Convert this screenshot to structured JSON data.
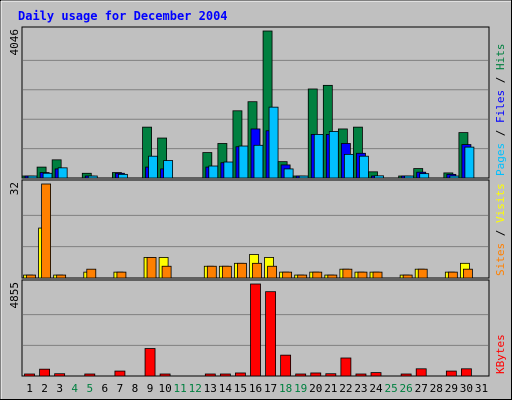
{
  "chart_data": [
    {
      "type": "bar",
      "title": "Daily usage for December 2004",
      "panel": "top",
      "ymax_label": "4046",
      "ylim": [
        0,
        4046
      ],
      "legend": [
        {
          "label": "Pages",
          "color": "#00c0ff"
        },
        {
          "label": "Files",
          "color": "#0000ff"
        },
        {
          "label": "Hits",
          "color": "#008040"
        }
      ],
      "legend_separator": " / ",
      "categories": [
        "1",
        "2",
        "3",
        "4",
        "5",
        "6",
        "7",
        "8",
        "9",
        "10",
        "11",
        "12",
        "13",
        "14",
        "15",
        "16",
        "17",
        "18",
        "19",
        "20",
        "21",
        "22",
        "23",
        "24",
        "25",
        "26",
        "27",
        "28",
        "29",
        "30",
        "31"
      ],
      "series": [
        {
          "name": "Hits",
          "color": "#008040",
          "values": [
            50,
            300,
            500,
            0,
            130,
            0,
            150,
            0,
            1400,
            1100,
            0,
            0,
            700,
            950,
            1850,
            2100,
            4046,
            450,
            50,
            2450,
            2550,
            1350,
            1400,
            170,
            0,
            40,
            260,
            0,
            140,
            1250,
            0
          ]
        },
        {
          "name": "Files",
          "color": "#0000ff",
          "values": [
            30,
            150,
            250,
            0,
            30,
            0,
            130,
            0,
            300,
            250,
            0,
            0,
            300,
            420,
            860,
            1350,
            1300,
            360,
            30,
            1200,
            1200,
            950,
            680,
            30,
            0,
            20,
            160,
            0,
            100,
            920,
            0
          ]
        },
        {
          "name": "Pages",
          "color": "#00c0ff",
          "values": [
            25,
            130,
            280,
            0,
            25,
            0,
            100,
            0,
            600,
            480,
            0,
            0,
            330,
            440,
            880,
            900,
            1950,
            250,
            25,
            1200,
            1280,
            650,
            600,
            60,
            0,
            20,
            120,
            0,
            50,
            850,
            0
          ]
        }
      ]
    },
    {
      "type": "bar",
      "panel": "middle",
      "ymax_label": "32",
      "ylim": [
        0,
        32
      ],
      "legend": [
        {
          "label": "Sites",
          "color": "#ff8000"
        },
        {
          "label": "Visits",
          "color": "#ffff00"
        }
      ],
      "legend_separator": " / ",
      "categories": [
        "1",
        "2",
        "3",
        "4",
        "5",
        "6",
        "7",
        "8",
        "9",
        "10",
        "11",
        "12",
        "13",
        "14",
        "15",
        "16",
        "17",
        "18",
        "19",
        "20",
        "21",
        "22",
        "23",
        "24",
        "25",
        "26",
        "27",
        "28",
        "29",
        "30",
        "31"
      ],
      "series": [
        {
          "name": "Visits",
          "color": "#ffff00",
          "values": [
            1,
            17,
            1,
            0,
            2,
            0,
            2,
            0,
            7,
            7,
            0,
            0,
            4,
            4,
            5,
            8,
            7,
            2,
            1,
            2,
            1,
            3,
            2,
            2,
            0,
            1,
            3,
            0,
            2,
            5,
            0
          ]
        },
        {
          "name": "Sites",
          "color": "#ff8000",
          "values": [
            1,
            32,
            1,
            0,
            3,
            0,
            2,
            0,
            7,
            4,
            0,
            0,
            4,
            4,
            5,
            5,
            4,
            2,
            1,
            2,
            1,
            3,
            2,
            2,
            0,
            1,
            3,
            0,
            2,
            3,
            0
          ]
        }
      ]
    },
    {
      "type": "bar",
      "panel": "bottom",
      "ymax_label": "4855",
      "ylim": [
        0,
        4855
      ],
      "legend": [
        {
          "label": "KBytes",
          "color": "#ff0000"
        }
      ],
      "legend_separator": "",
      "categories": [
        "1",
        "2",
        "3",
        "4",
        "5",
        "6",
        "7",
        "8",
        "9",
        "10",
        "11",
        "12",
        "13",
        "14",
        "15",
        "16",
        "17",
        "18",
        "19",
        "20",
        "21",
        "22",
        "23",
        "24",
        "25",
        "26",
        "27",
        "28",
        "29",
        "30",
        "31"
      ],
      "series": [
        {
          "name": "KBytes",
          "color": "#ff0000",
          "values": [
            40,
            360,
            120,
            0,
            40,
            0,
            260,
            0,
            1450,
            80,
            0,
            0,
            80,
            90,
            160,
            4855,
            4450,
            1100,
            60,
            160,
            120,
            950,
            70,
            180,
            0,
            40,
            380,
            0,
            260,
            380,
            0
          ]
        }
      ]
    }
  ],
  "x_axis": {
    "labels": [
      "1",
      "2",
      "3",
      "4",
      "5",
      "6",
      "7",
      "8",
      "9",
      "10",
      "11",
      "12",
      "13",
      "14",
      "15",
      "16",
      "17",
      "18",
      "19",
      "20",
      "21",
      "22",
      "23",
      "24",
      "25",
      "26",
      "27",
      "28",
      "29",
      "30",
      "31"
    ],
    "weekend_days": [
      4,
      5,
      11,
      12,
      18,
      19,
      25,
      26
    ],
    "weekday_color": "#000000",
    "weekend_color": "#008040"
  },
  "colors": {
    "background": "#c0c0c0",
    "plot_background": "#c0c0c0",
    "title_color": "#0000ff",
    "grid": "#808080"
  }
}
